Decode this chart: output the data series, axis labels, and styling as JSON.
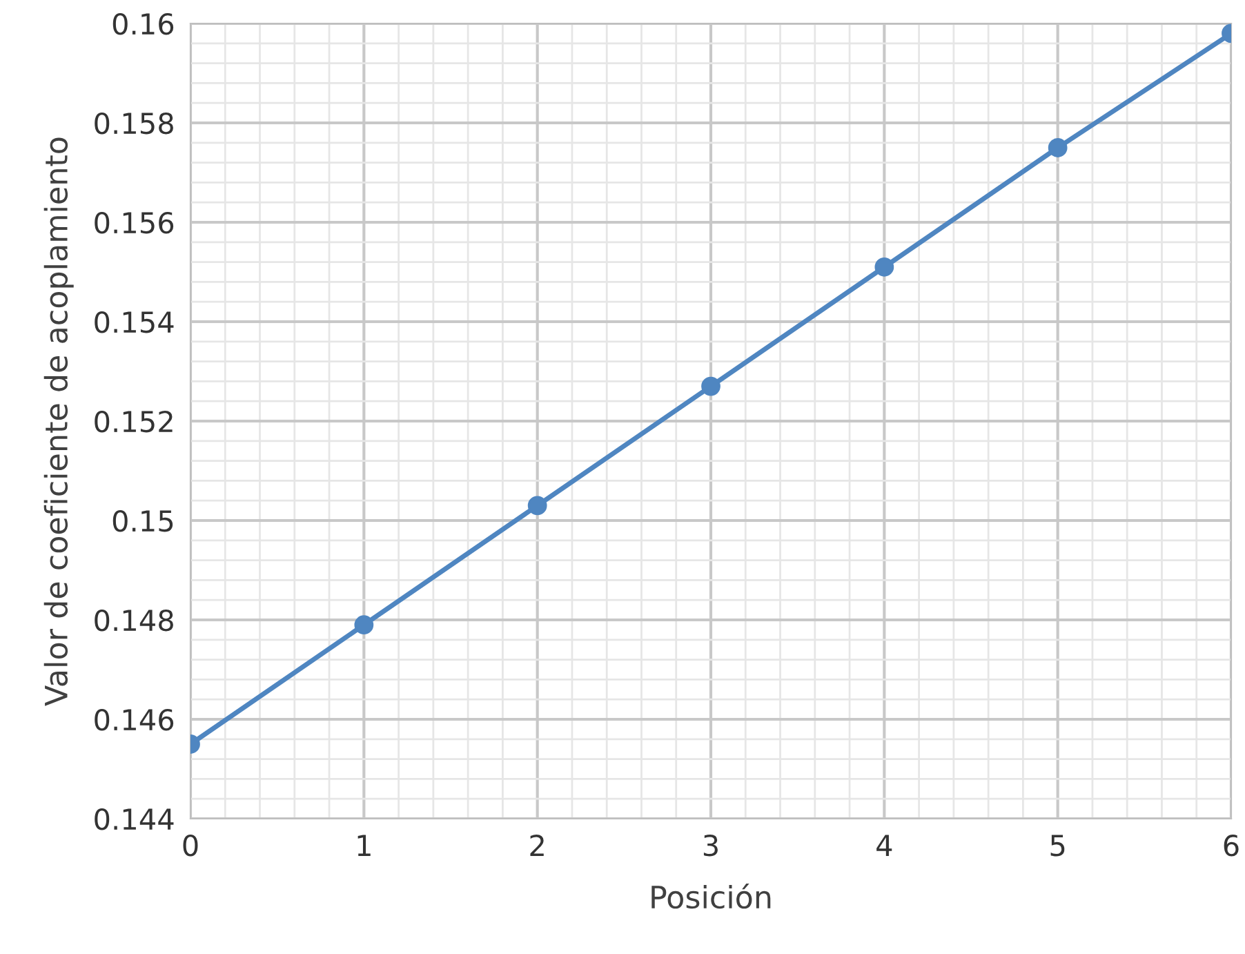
{
  "chart_data": {
    "type": "line",
    "xlabel": "Posición",
    "ylabel": "Valor de coeficiente de acoplamiento",
    "x": [
      0,
      1,
      2,
      3,
      4,
      5,
      6
    ],
    "series": [
      {
        "color": "#4f86c1",
        "values": [
          0.1455,
          0.1479,
          0.1503,
          0.1527,
          0.1551,
          0.1575,
          0.1598
        ]
      }
    ],
    "xlim": [
      0,
      6
    ],
    "xticks": [
      0,
      1,
      2,
      3,
      4,
      5,
      6
    ],
    "ylim": [
      0.144,
      0.16
    ],
    "yticks": [
      0.144,
      0.146,
      0.148,
      0.15,
      0.152,
      0.154,
      0.156,
      0.158,
      0.16
    ],
    "grid": true,
    "marker": "circle",
    "line_style": "solid"
  }
}
